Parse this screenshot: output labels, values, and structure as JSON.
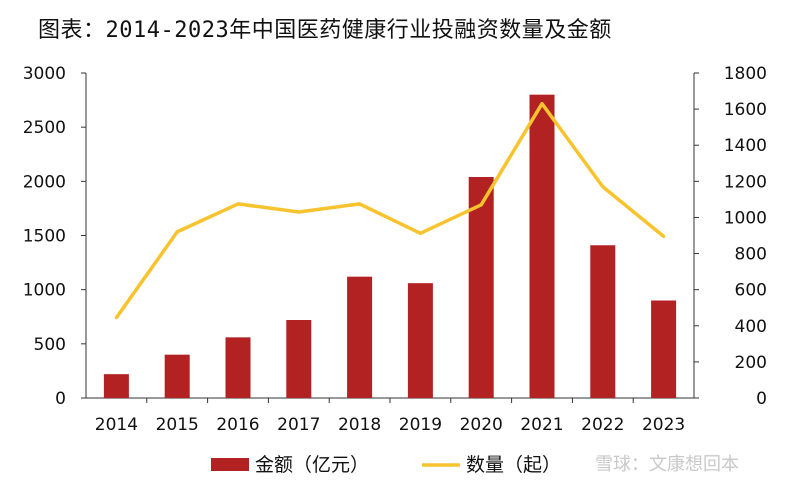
{
  "chart_data": {
    "type": "bar+line",
    "title": "图表：2014-2023年中国医药健康行业投融资数量及金额",
    "categories": [
      "2014",
      "2015",
      "2016",
      "2017",
      "2018",
      "2019",
      "2020",
      "2021",
      "2022",
      "2023"
    ],
    "series": [
      {
        "name": "金额（亿元）",
        "type": "bar",
        "axis": "left",
        "color": "#b22222",
        "values": [
          220,
          400,
          560,
          720,
          1120,
          1060,
          2040,
          2800,
          1410,
          900
        ]
      },
      {
        "name": "数量（起）",
        "type": "line",
        "axis": "right",
        "color": "#f7c32e",
        "values": [
          445,
          920,
          1075,
          1030,
          1075,
          912,
          1070,
          1630,
          1170,
          895
        ]
      }
    ],
    "y_left": {
      "min": 0,
      "max": 3000,
      "ticks": [
        "0",
        "500",
        "1000",
        "1500",
        "2000",
        "2500",
        "3000"
      ]
    },
    "y_right": {
      "min": 0,
      "max": 1800,
      "ticks": [
        "0",
        "200",
        "400",
        "600",
        "800",
        "1000",
        "1200",
        "1400",
        "1600",
        "1800"
      ]
    },
    "grid": false,
    "legend_position": "bottom"
  },
  "watermark": "雪球：文康想回本"
}
